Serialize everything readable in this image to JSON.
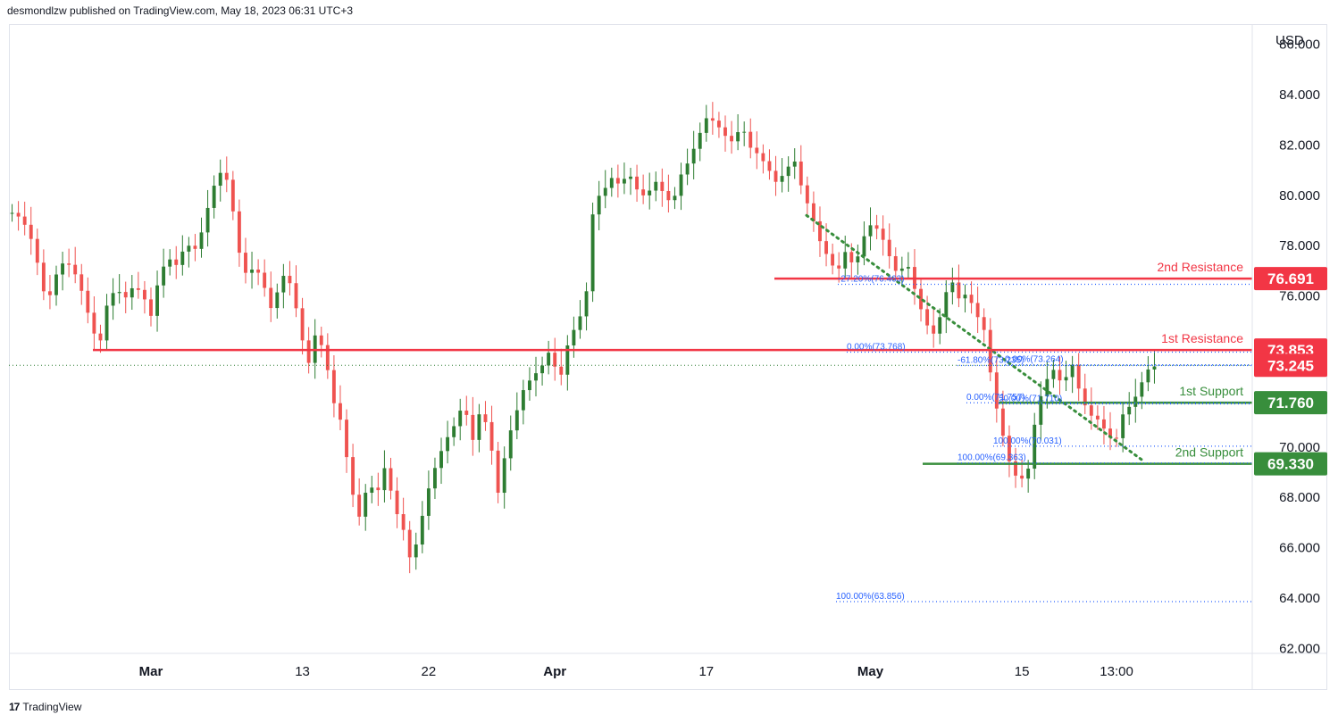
{
  "header": {
    "attribution": "desmondlzw published on TradingView.com, May 18, 2023 06:31 UTC+3"
  },
  "footer": {
    "brand": "TradingView"
  },
  "colors": {
    "up": "#26a69a",
    "upBody": "#2e7d32",
    "down": "#ef5350",
    "resistance": "#f23645",
    "support": "#388e3c",
    "fib": "#2962ff",
    "trend": "#388e3c"
  },
  "chart_data": {
    "type": "candlestick",
    "currency_label": "USD",
    "ylim": [
      61.8,
      86.8
    ],
    "y_ticks": [
      62,
      64,
      66,
      68,
      70,
      72,
      74,
      76,
      78,
      80,
      82,
      84,
      86
    ],
    "y_tick_labels": [
      "62.000",
      "64.000",
      "66.000",
      "68.000",
      "70.000",
      "72.000",
      "74.000",
      "76.000",
      "78.000",
      "80.000",
      "82.000",
      "84.000",
      "86.000"
    ],
    "x_ticks": [
      {
        "label": "Mar",
        "bar": 22,
        "bold": true
      },
      {
        "label": "13",
        "bar": 46,
        "bold": false
      },
      {
        "label": "22",
        "bar": 66,
        "bold": false
      },
      {
        "label": "Apr",
        "bar": 86,
        "bold": true
      },
      {
        "label": "17",
        "bar": 110,
        "bold": false
      },
      {
        "label": "May",
        "bar": 136,
        "bold": true
      },
      {
        "label": "15",
        "bar": 160,
        "bold": false
      },
      {
        "label": "13:00",
        "bar": 175,
        "bold": false
      }
    ],
    "bar_count": 197,
    "closes": [
      79.3,
      79.1,
      78.5,
      77.2,
      75.6,
      76.8,
      77.4,
      77.1,
      76.2,
      75.0,
      73.9,
      75.8,
      76.3,
      75.9,
      76.4,
      76.1,
      75.2,
      76.9,
      77.5,
      77.2,
      78.1,
      77.8,
      78.7,
      80.2,
      80.9,
      80.5,
      77.9,
      76.8,
      77.2,
      76.4,
      75.3,
      76.9,
      76.5,
      75.1,
      73.1,
      74.6,
      73.7,
      71.8,
      70.9,
      68.4,
      67.2,
      68.6,
      68.1,
      69.3,
      67.6,
      66.8,
      65.3,
      66.9,
      68.4,
      69.5,
      70.3,
      70.9,
      71.8,
      70.2,
      71.6,
      70.4,
      68.1,
      70.2,
      71.3,
      72.4,
      72.8,
      73.2,
      73.9,
      72.5,
      74.1,
      74.9,
      75.6,
      79.8,
      80.1,
      80.7,
      80.4,
      80.9,
      80.2,
      79.9,
      80.6,
      80.1,
      79.6,
      80.8,
      81.4,
      82.3,
      83.1,
      82.9,
      82.4,
      82.1,
      82.8,
      81.9,
      81.6,
      81.1,
      80.5,
      80.9,
      81.5,
      80.2,
      79.3,
      78.2,
      77.5,
      76.9,
      77.8,
      77.1,
      78.3,
      78.9,
      78.5,
      77.6,
      76.8,
      77.4,
      76.2,
      75.1,
      74.4,
      75.3,
      76.8,
      75.9,
      76.1,
      75.3,
      74.6,
      72.1,
      70.6,
      69.2,
      68.6,
      69.1,
      71.5,
      72.6,
      73.1,
      72.4,
      73.4,
      72.1,
      71.3,
      71.1,
      70.6,
      70.1,
      71.4,
      71.7,
      72.5,
      73.2
    ],
    "close_bar_offset": 0,
    "last_price": 73.245,
    "levels": [
      {
        "name": "2nd Resistance",
        "value": 76.691,
        "label": "76.691",
        "kind": "resistance"
      },
      {
        "name": "1st Resistance",
        "value": 73.853,
        "label": "73.853",
        "kind": "resistance"
      },
      {
        "name": "1st Support",
        "value": 71.76,
        "label": "71.760",
        "kind": "support"
      },
      {
        "name": "2nd Support",
        "value": 69.33,
        "label": "69.330",
        "kind": "support"
      }
    ],
    "fib_labels": [
      {
        "text": "-27.20%(76.463)",
        "value": 76.463
      },
      {
        "text": "0.00%(73.768)",
        "value": 73.768
      },
      {
        "text": "-61.80%(73.235)",
        "value": 73.235
      },
      {
        "text": "0.00%(73.264)",
        "value": 73.264
      },
      {
        "text": "0.00%(71.757)",
        "value": 71.757
      },
      {
        "text": "50.00%(71.710)",
        "value": 71.71
      },
      {
        "text": "100.00%(70.031)",
        "value": 70.031
      },
      {
        "text": "100.00%(69.363)",
        "value": 69.363
      },
      {
        "text": "100.00%(63.856)",
        "value": 63.856
      }
    ]
  }
}
